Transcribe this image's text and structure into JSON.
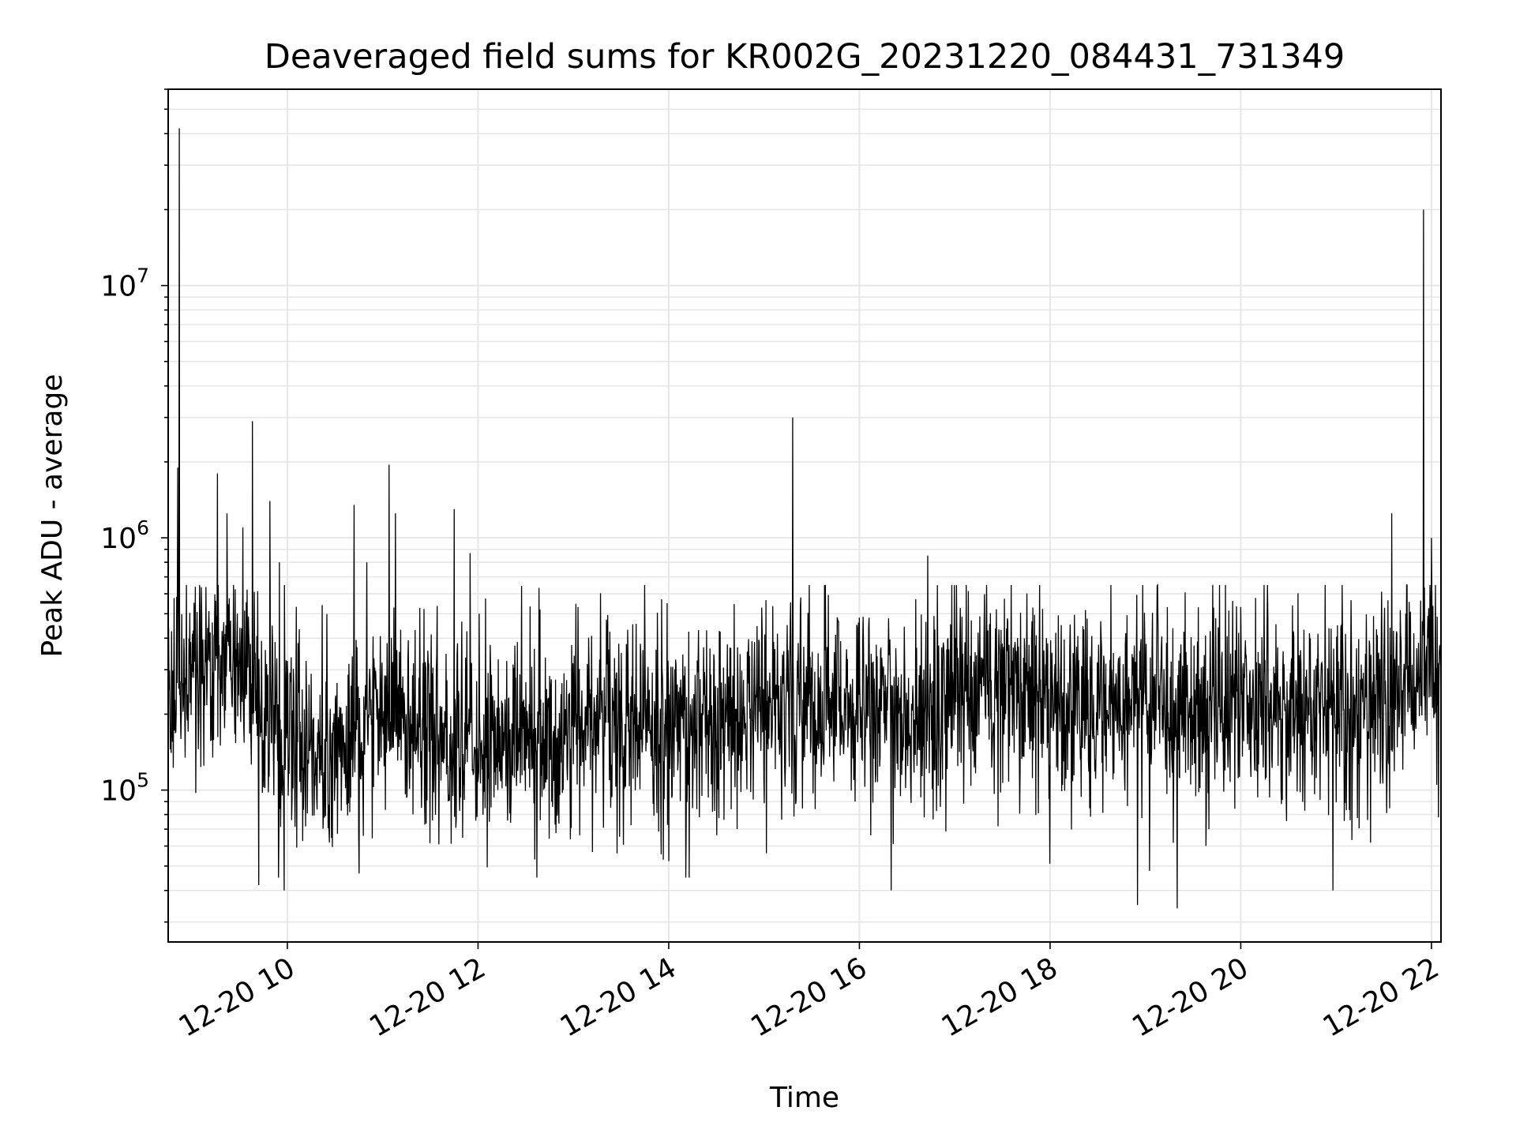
{
  "chart_data": {
    "type": "line",
    "title": "Deaveraged field sums for KR002G_20231220_084431_731349",
    "xlabel": "Time",
    "ylabel": "Peak ADU - average",
    "xlim": [
      "12-20 08:45",
      "12-20 22:06"
    ],
    "ylim": [
      25000,
      60000000
    ],
    "y_scale": "log",
    "grid": true,
    "x_ticks": [
      "12-20 10",
      "12-20 12",
      "12-20 14",
      "12-20 16",
      "12-20 18",
      "12-20 20",
      "12-20 22"
    ],
    "y_ticks": [
      {
        "base": "10",
        "exp": "5",
        "value": 100000
      },
      {
        "base": "10",
        "exp": "6",
        "value": 1000000
      },
      {
        "base": "10",
        "exp": "7",
        "value": 10000000
      }
    ],
    "series": [
      {
        "color": "#000000",
        "baseline": [
          {
            "t": "12-20 08:45",
            "y": 280000
          },
          {
            "t": "12-20 09:15",
            "y": 350000
          },
          {
            "t": "12-20 09:40",
            "y": 250000
          },
          {
            "t": "12-20 10:00",
            "y": 140000
          },
          {
            "t": "12-20 10:30",
            "y": 140000
          },
          {
            "t": "12-20 11:00",
            "y": 200000
          },
          {
            "t": "12-20 11:30",
            "y": 170000
          },
          {
            "t": "12-20 12:00",
            "y": 150000
          },
          {
            "t": "12-20 13:00",
            "y": 170000
          },
          {
            "t": "12-20 14:00",
            "y": 185000
          },
          {
            "t": "12-20 15:00",
            "y": 200000
          },
          {
            "t": "12-20 16:00",
            "y": 210000
          },
          {
            "t": "12-20 17:00",
            "y": 230000
          },
          {
            "t": "12-20 18:00",
            "y": 230000
          },
          {
            "t": "12-20 19:00",
            "y": 220000
          },
          {
            "t": "12-20 20:00",
            "y": 220000
          },
          {
            "t": "12-20 21:00",
            "y": 220000
          },
          {
            "t": "12-20 21:30",
            "y": 230000
          },
          {
            "t": "12-20 22:06",
            "y": 360000
          }
        ],
        "spikes": [
          {
            "t": "12-20 08:52",
            "y": 42000000
          },
          {
            "t": "12-20 08:51",
            "y": 1900000
          },
          {
            "t": "12-20 09:16",
            "y": 1800000
          },
          {
            "t": "12-20 09:22",
            "y": 1250000
          },
          {
            "t": "12-20 09:32",
            "y": 1100000
          },
          {
            "t": "12-20 09:38",
            "y": 2900000
          },
          {
            "t": "12-20 09:49",
            "y": 1400000
          },
          {
            "t": "12-20 09:55",
            "y": 800000
          },
          {
            "t": "12-20 10:42",
            "y": 1350000
          },
          {
            "t": "12-20 10:50",
            "y": 800000
          },
          {
            "t": "12-20 11:04",
            "y": 1950000
          },
          {
            "t": "12-20 11:08",
            "y": 1250000
          },
          {
            "t": "12-20 11:45",
            "y": 1300000
          },
          {
            "t": "12-20 11:55",
            "y": 870000
          },
          {
            "t": "12-20 12:39",
            "y": 520000
          },
          {
            "t": "12-20 15:18",
            "y": 3000000
          },
          {
            "t": "12-20 16:43",
            "y": 850000
          },
          {
            "t": "12-20 21:35",
            "y": 1250000
          },
          {
            "t": "12-20 21:55",
            "y": 20000000
          },
          {
            "t": "12-20 22:00",
            "y": 1000000
          }
        ],
        "dips": [
          {
            "t": "12-20 09:42",
            "y": 42000
          },
          {
            "t": "12-20 09:58",
            "y": 40000
          },
          {
            "t": "12-20 16:20",
            "y": 40000
          },
          {
            "t": "12-20 18:55",
            "y": 35000
          },
          {
            "t": "12-20 19:20",
            "y": 34000
          },
          {
            "t": "12-20 20:58",
            "y": 40000
          }
        ]
      }
    ]
  }
}
